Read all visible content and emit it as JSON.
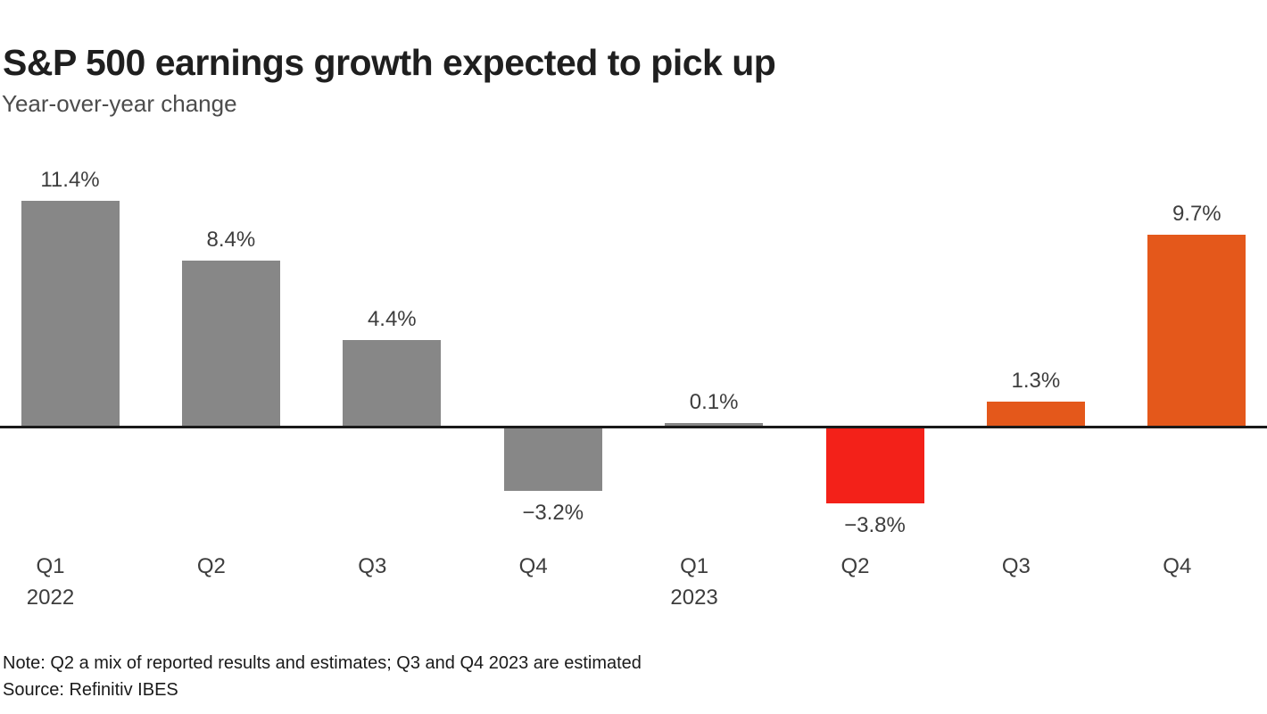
{
  "header": {
    "title": "S&P 500 earnings growth expected to pick up",
    "subtitle": "Year-over-year change"
  },
  "footer": {
    "note": "Note: Q2 a mix of reported results and estimates; Q3 and Q4 2023 are estimated",
    "source": "Source: Refinitiv IBES"
  },
  "colors": {
    "reported_gray": "#878787",
    "negative_red": "#f32119",
    "estimate_orange": "#e4581b",
    "axis": "#1a1a1a",
    "title_text": "#1f1f1f",
    "label_text": "#3d3d3d"
  },
  "chart_data": {
    "type": "bar",
    "title": "S&P 500 earnings growth expected to pick up",
    "subtitle": "Year-over-year change",
    "unit": "%",
    "baseline": 0,
    "ylim": [
      -6,
      13
    ],
    "grid": false,
    "legend": false,
    "categories": [
      {
        "quarter": "Q1",
        "year": "2022"
      },
      {
        "quarter": "Q2",
        "year": ""
      },
      {
        "quarter": "Q3",
        "year": ""
      },
      {
        "quarter": "Q4",
        "year": ""
      },
      {
        "quarter": "Q1",
        "year": "2023"
      },
      {
        "quarter": "Q2",
        "year": ""
      },
      {
        "quarter": "Q3",
        "year": ""
      },
      {
        "quarter": "Q4",
        "year": ""
      }
    ],
    "values": [
      11.4,
      8.4,
      4.4,
      -3.2,
      0.1,
      -3.8,
      1.3,
      9.7
    ],
    "value_labels": [
      "11.4%",
      "8.4%",
      "4.4%",
      "−3.2%",
      "0.1%",
      "−3.8%",
      "1.3%",
      "9.7%"
    ],
    "bar_colors": [
      "#878787",
      "#878787",
      "#878787",
      "#878787",
      "#878787",
      "#f32119",
      "#e4581b",
      "#e4581b"
    ]
  }
}
